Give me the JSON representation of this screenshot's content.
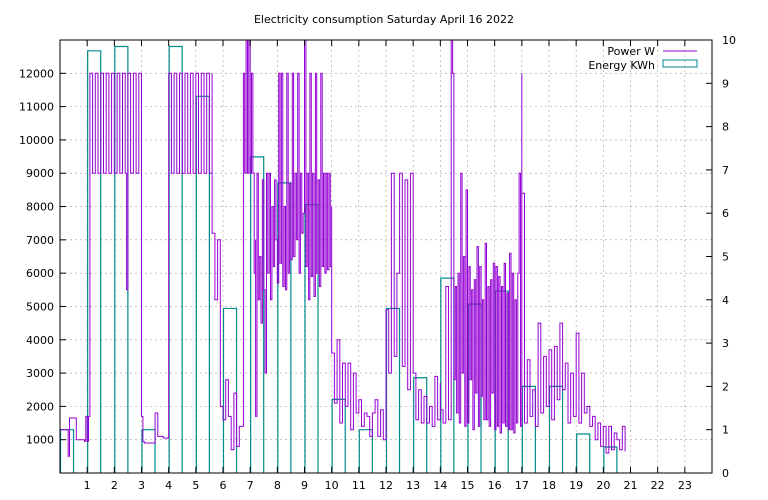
{
  "chart_data": {
    "type": "line",
    "title": "Electricity consumption Saturday April 16 2022",
    "xlabel": "",
    "ylabel": "",
    "xlim": [
      0,
      24
    ],
    "ylim": [
      0,
      13000
    ],
    "y2lim": [
      0,
      10
    ],
    "x_ticks": [
      1,
      2,
      3,
      4,
      5,
      6,
      7,
      8,
      9,
      10,
      11,
      12,
      13,
      14,
      15,
      16,
      17,
      18,
      19,
      20,
      21,
      22,
      23
    ],
    "y_ticks": [
      1000,
      2000,
      3000,
      4000,
      5000,
      6000,
      7000,
      8000,
      9000,
      10000,
      11000,
      12000
    ],
    "y2_ticks": [
      0,
      1,
      2,
      3,
      4,
      5,
      6,
      7,
      8,
      9,
      10
    ],
    "grid": true,
    "legend_position": "top-right",
    "series": [
      {
        "name": "Power W",
        "axis": "left",
        "color": "#9400d3",
        "style": "step-line",
        "x": [
          0,
          0.3,
          0.3,
          0.35,
          0.35,
          0.6,
          0.6,
          0.9,
          0.9,
          0.95,
          0.95,
          1.0,
          1.0,
          1.05,
          1.05,
          1.1,
          1.1,
          1.2,
          1.3,
          1.4,
          1.5,
          1.6,
          1.7,
          1.8,
          1.9,
          2.0,
          2.1,
          2.2,
          2.3,
          2.4,
          2.45,
          2.5,
          2.6,
          2.7,
          2.8,
          2.9,
          3.0,
          3.0,
          3.05,
          3.05,
          3.1,
          3.1,
          3.5,
          3.5,
          3.6,
          3.6,
          3.8,
          3.8,
          4.0,
          4.0,
          4.1,
          4.2,
          4.3,
          4.4,
          4.5,
          4.6,
          4.7,
          4.8,
          4.9,
          5.0,
          5.1,
          5.2,
          5.3,
          5.4,
          5.5,
          5.6,
          5.6,
          5.7,
          5.7,
          5.8,
          5.8,
          5.9,
          5.9,
          6.0,
          6.0,
          6.1,
          6.1,
          6.2,
          6.2,
          6.3,
          6.3,
          6.4,
          6.4,
          6.5,
          6.5,
          6.6,
          6.6,
          6.75,
          6.75,
          6.8,
          6.85,
          6.9,
          6.95,
          7.0,
          7.05,
          7.1,
          7.15,
          7.2,
          7.2,
          7.25,
          7.3,
          7.35,
          7.4,
          7.45,
          7.5,
          7.55,
          7.6,
          7.65,
          7.7,
          7.75,
          7.8,
          7.85,
          7.9,
          7.95,
          8.0,
          8.05,
          8.1,
          8.15,
          8.2,
          8.25,
          8.3,
          8.35,
          8.4,
          8.45,
          8.5,
          8.55,
          8.6,
          8.65,
          8.7,
          8.75,
          8.8,
          8.85,
          8.9,
          8.95,
          9.0,
          9.05,
          9.1,
          9.15,
          9.2,
          9.25,
          9.3,
          9.35,
          9.4,
          9.45,
          9.5,
          9.55,
          9.6,
          9.65,
          9.7,
          9.75,
          9.8,
          9.85,
          9.9,
          9.95,
          10.0,
          10.0,
          10.1,
          10.2,
          10.3,
          10.4,
          10.5,
          10.6,
          10.7,
          10.8,
          10.9,
          11.0,
          11.1,
          11.2,
          11.3,
          11.4,
          11.5,
          11.6,
          11.7,
          11.8,
          11.9,
          12.0,
          12.0,
          12.1,
          12.2,
          12.3,
          12.4,
          12.5,
          12.6,
          12.7,
          12.8,
          12.9,
          13.0,
          13.1,
          13.2,
          13.3,
          13.4,
          13.5,
          13.6,
          13.7,
          13.8,
          13.9,
          14.0,
          14.0,
          14.1,
          14.2,
          14.3,
          14.4,
          14.45,
          14.5,
          14.55,
          14.6,
          14.65,
          14.7,
          14.75,
          14.8,
          14.85,
          14.9,
          14.95,
          15.0,
          15.05,
          15.1,
          15.15,
          15.2,
          15.25,
          15.3,
          15.35,
          15.4,
          15.45,
          15.5,
          15.55,
          15.6,
          15.65,
          15.7,
          15.75,
          15.8,
          15.85,
          15.9,
          15.95,
          16.0,
          16.05,
          16.1,
          16.15,
          16.2,
          16.25,
          16.3,
          16.35,
          16.4,
          16.45,
          16.5,
          16.55,
          16.6,
          16.65,
          16.7,
          16.75,
          16.8,
          16.85,
          16.9,
          16.95,
          17.0,
          17.0,
          17.1,
          17.2,
          17.3,
          17.4,
          17.5,
          17.6,
          17.7,
          17.8,
          17.9,
          18.0,
          18.1,
          18.2,
          18.3,
          18.4,
          18.5,
          18.6,
          18.7,
          18.8,
          18.9,
          19.0,
          19.1,
          19.2,
          19.3,
          19.4,
          19.5,
          19.6,
          19.7,
          19.8,
          19.9,
          20.0,
          20.1,
          20.2,
          20.3,
          20.4,
          20.5,
          20.6,
          20.7,
          20.8
        ],
        "y": [
          1300,
          1300,
          500,
          500,
          1650,
          1650,
          1000,
          1000,
          950,
          950,
          1700,
          1700,
          950,
          950,
          1700,
          1700,
          12000,
          9000,
          12000,
          9000,
          12000,
          9000,
          12000,
          9000,
          12000,
          9000,
          12000,
          9000,
          12000,
          9000,
          5500,
          12000,
          9000,
          12000,
          9000,
          12000,
          9000,
          1700,
          1700,
          950,
          950,
          900,
          900,
          1800,
          1800,
          1100,
          1100,
          1050,
          1050,
          12000,
          9000,
          12000,
          9000,
          12000,
          9000,
          12000,
          9000,
          12000,
          9000,
          12000,
          9000,
          12000,
          9000,
          12000,
          9000,
          12000,
          7200,
          7200,
          5200,
          5200,
          7000,
          7000,
          2000,
          2000,
          1600,
          1600,
          2800,
          2800,
          1700,
          1700,
          700,
          700,
          2400,
          2400,
          800,
          800,
          1400,
          1400,
          12000,
          9000,
          13000,
          9000,
          13000,
          9000,
          12000,
          9000,
          6000,
          7000,
          1700,
          9000,
          5200,
          6500,
          4500,
          8800,
          5500,
          3000,
          9000,
          6000,
          9000,
          5200,
          8000,
          6200,
          8800,
          7000,
          5700,
          12000,
          6300,
          12000,
          5600,
          8000,
          5500,
          12000,
          6000,
          8700,
          6400,
          12000,
          6500,
          9000,
          7000,
          12000,
          6000,
          9000,
          7200,
          7800,
          13000,
          6200,
          9000,
          5200,
          12000,
          5900,
          9000,
          5300,
          12000,
          6000,
          8800,
          5600,
          12000,
          6200,
          9000,
          6000,
          9000,
          6100,
          9000,
          6200,
          8000,
          3600,
          2100,
          4000,
          1500,
          3300,
          2000,
          3300,
          1300,
          3000,
          1800,
          2200,
          1400,
          1800,
          1700,
          1100,
          1800,
          2200,
          1100,
          1900,
          1000,
          1200,
          4900,
          3000,
          9000,
          3500,
          6000,
          9000,
          3200,
          8800,
          2500,
          9000,
          3000,
          1600,
          2500,
          1500,
          2300,
          1500,
          2000,
          1400,
          2900,
          1600,
          2700,
          1900,
          1500,
          5600,
          1600,
          13000,
          12000,
          2800,
          5600,
          1800,
          6000,
          1500,
          9000,
          3000,
          6500,
          1400,
          8500,
          1500,
          6200,
          2800,
          5500,
          1300,
          5800,
          2400,
          6800,
          1400,
          6200,
          2300,
          5200,
          1600,
          6900,
          1600,
          5600,
          1400,
          5800,
          2400,
          6300,
          1300,
          6200,
          1400,
          5900,
          1200,
          5600,
          1500,
          6300,
          1400,
          5400,
          1300,
          6600,
          1300,
          6000,
          1200,
          5200,
          1500,
          6000,
          9000,
          1400,
          12000,
          8400,
          1500,
          3400,
          1700,
          2500,
          1400,
          4500,
          1800,
          3500,
          2000,
          3700,
          1600,
          3800,
          2200,
          4500,
          2500,
          3300,
          1500,
          3000,
          1700,
          4200,
          1500,
          3000,
          1800,
          2000,
          1400,
          1700,
          1000,
          1500,
          800,
          1400,
          600,
          1400,
          700,
          1200,
          1000,
          700,
          1400,
          650
        ]
      },
      {
        "name": "Energy KWh",
        "axis": "right",
        "color": "#008b8b",
        "style": "histogram",
        "hours": [
          0,
          1,
          2,
          3,
          4,
          5,
          6,
          7,
          8,
          9,
          10,
          11,
          12,
          13,
          14,
          15,
          16,
          17,
          18,
          19,
          20,
          21,
          22,
          23
        ],
        "values": [
          1.0,
          9.75,
          9.85,
          1.0,
          9.85,
          8.7,
          3.8,
          7.3,
          6.7,
          6.2,
          1.7,
          1.0,
          3.8,
          2.2,
          4.5,
          3.9,
          4.2,
          2.0,
          2.0,
          0.9,
          0.6,
          0,
          0,
          0
        ]
      }
    ]
  }
}
